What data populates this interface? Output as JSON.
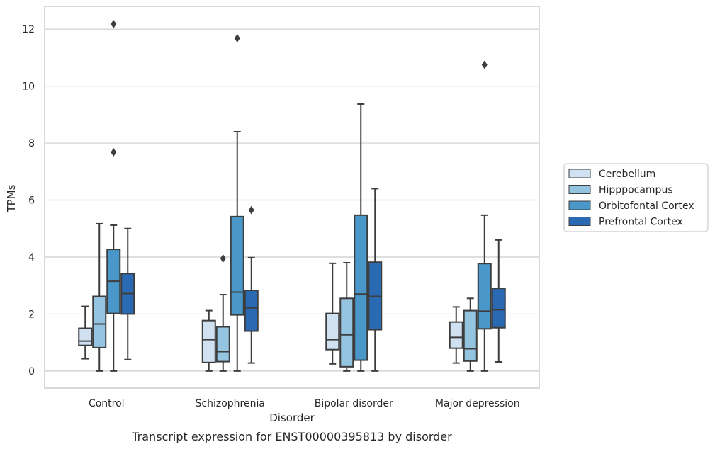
{
  "chart_data": {
    "type": "boxplot",
    "caption": "Transcript expression for ENST00000395813 by disorder",
    "xlabel": "Disorder",
    "ylabel": "TPMs",
    "ylim": [
      -0.6,
      12.8
    ],
    "yticks": [
      0,
      2,
      4,
      6,
      8,
      10,
      12
    ],
    "grid": true,
    "legend_position": "right",
    "categories": [
      "Control",
      "Schizophrenia",
      "Bipolar disorder",
      "Major depression"
    ],
    "series": [
      {
        "name": "Cerebellum",
        "color": "#d0e1f2",
        "boxes": [
          {
            "whislo": 0.43,
            "q1": 0.9,
            "med": 1.05,
            "q3": 1.5,
            "whishi": 2.27,
            "fliers": []
          },
          {
            "whislo": 0.0,
            "q1": 0.3,
            "med": 1.1,
            "q3": 1.77,
            "whishi": 2.12,
            "fliers": []
          },
          {
            "whislo": 0.25,
            "q1": 0.75,
            "med": 1.1,
            "q3": 2.02,
            "whishi": 3.78,
            "fliers": []
          },
          {
            "whislo": 0.28,
            "q1": 0.8,
            "med": 1.18,
            "q3": 1.72,
            "whishi": 2.25,
            "fliers": []
          }
        ]
      },
      {
        "name": "Hipppocampus",
        "color": "#94c4df",
        "boxes": [
          {
            "whislo": 0.0,
            "q1": 0.82,
            "med": 1.65,
            "q3": 2.62,
            "whishi": 5.17,
            "fliers": []
          },
          {
            "whislo": 0.0,
            "q1": 0.33,
            "med": 0.68,
            "q3": 1.55,
            "whishi": 2.68,
            "fliers": [
              3.95
            ]
          },
          {
            "whislo": 0.0,
            "q1": 0.15,
            "med": 1.27,
            "q3": 2.55,
            "whishi": 3.8,
            "fliers": []
          },
          {
            "whislo": 0.0,
            "q1": 0.35,
            "med": 0.78,
            "q3": 2.12,
            "whishi": 2.55,
            "fliers": []
          }
        ]
      },
      {
        "name": "Orbitofontal Cortex",
        "color": "#4a98c9",
        "boxes": [
          {
            "whislo": 0.0,
            "q1": 2.02,
            "med": 3.15,
            "q3": 4.27,
            "whishi": 5.12,
            "fliers": [
              7.68,
              12.18
            ]
          },
          {
            "whislo": 0.0,
            "q1": 1.97,
            "med": 2.77,
            "q3": 5.42,
            "whishi": 8.4,
            "fliers": [
              11.68
            ]
          },
          {
            "whislo": 0.0,
            "q1": 0.38,
            "med": 2.7,
            "q3": 5.47,
            "whishi": 9.37,
            "fliers": []
          },
          {
            "whislo": 0.0,
            "q1": 1.48,
            "med": 2.1,
            "q3": 3.77,
            "whishi": 5.47,
            "fliers": [
              10.75
            ]
          }
        ]
      },
      {
        "name": "Prefrontal Cortex",
        "color": "#2a6ab3",
        "boxes": [
          {
            "whislo": 0.4,
            "q1": 2.0,
            "med": 2.72,
            "q3": 3.42,
            "whishi": 5.0,
            "fliers": []
          },
          {
            "whislo": 0.28,
            "q1": 1.4,
            "med": 2.22,
            "q3": 2.83,
            "whishi": 3.98,
            "fliers": [
              5.65
            ]
          },
          {
            "whislo": 0.0,
            "q1": 1.45,
            "med": 2.62,
            "q3": 3.82,
            "whishi": 6.4,
            "fliers": []
          },
          {
            "whislo": 0.32,
            "q1": 1.52,
            "med": 2.15,
            "q3": 2.9,
            "whishi": 4.6,
            "fliers": []
          }
        ]
      }
    ]
  }
}
